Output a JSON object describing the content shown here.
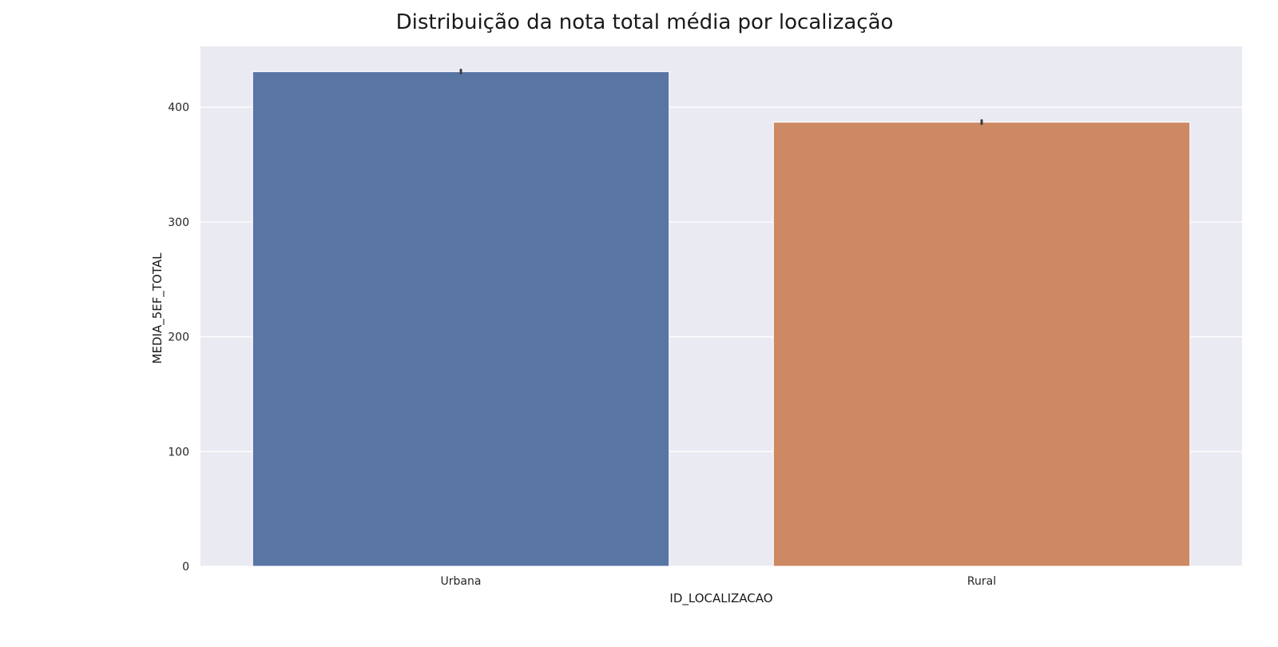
{
  "chart_data": {
    "type": "bar",
    "title": "Distribuição da nota total média por localização",
    "xlabel": "ID_LOCALIZACAO",
    "ylabel": "MEDIA_5EF_TOTAL",
    "categories": [
      "Urbana",
      "Rural"
    ],
    "values": [
      431,
      387
    ],
    "error_bars": [
      [
        429.5,
        432.5
      ],
      [
        385.5,
        388.5
      ]
    ],
    "ylim": [
      0,
      453
    ],
    "yticks": [
      0,
      100,
      200,
      300,
      400
    ],
    "grid": true,
    "legend": "none",
    "colors": {
      "background": "#eaeaf2",
      "grid": "#ffffff",
      "bars": [
        "#5875a4",
        "#cc8963"
      ],
      "error_bar": "#3d3d3d"
    }
  }
}
